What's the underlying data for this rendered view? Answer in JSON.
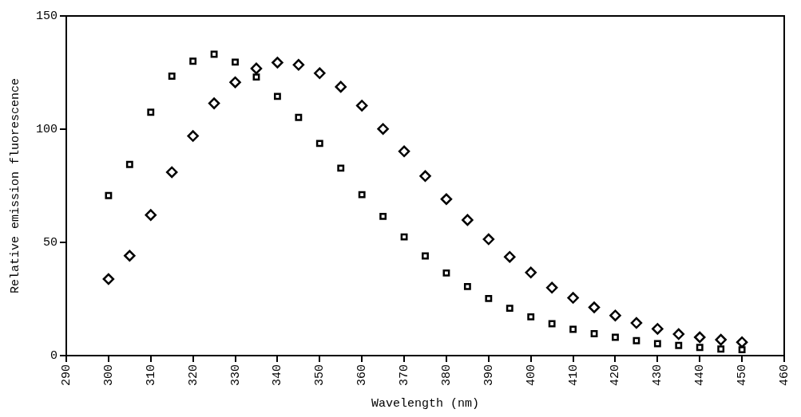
{
  "chart_data": {
    "type": "scatter",
    "xlabel": "Wavelength (nm)",
    "ylabel": "Relative emission fluorescence",
    "x": [
      300,
      305,
      310,
      315,
      320,
      325,
      330,
      335,
      340,
      345,
      350,
      355,
      360,
      365,
      370,
      375,
      380,
      385,
      390,
      395,
      400,
      405,
      410,
      415,
      420,
      425,
      430,
      435,
      440,
      445,
      450
    ],
    "series": [
      {
        "color": "#000000",
        "marker": "square",
        "values": [
          70.7,
          84.4,
          107.5,
          123.4,
          130,
          133.1,
          129.6,
          123,
          114.5,
          105.2,
          93.7,
          82.8,
          71.1,
          61.5,
          52.4,
          44,
          36.5,
          30.5,
          25.2,
          20.9,
          17.1,
          14.1,
          11.6,
          9.7,
          8.1,
          6.6,
          5.3,
          4.5,
          3.6,
          2.9,
          2.6
        ]
      },
      {
        "color": "#000000",
        "marker": "diamond",
        "values": [
          33.8,
          44.1,
          62.1,
          81,
          97,
          111.4,
          120.7,
          126.8,
          129.4,
          128.4,
          124.7,
          118.7,
          110.4,
          100.1,
          90.2,
          79.3,
          69.1,
          59.9,
          51.4,
          43.6,
          36.7,
          30,
          25.5,
          21.3,
          17.7,
          14.4,
          11.8,
          9.5,
          8.1,
          7,
          5.9
        ]
      }
    ],
    "xlim": [
      290,
      460
    ],
    "xticks": [
      290,
      300,
      310,
      320,
      330,
      340,
      350,
      360,
      370,
      380,
      390,
      400,
      410,
      420,
      430,
      440,
      450,
      460
    ],
    "ylim": [
      0,
      150
    ],
    "yticks": [
      0,
      50,
      100,
      150
    ],
    "grid": false,
    "legend": false
  }
}
